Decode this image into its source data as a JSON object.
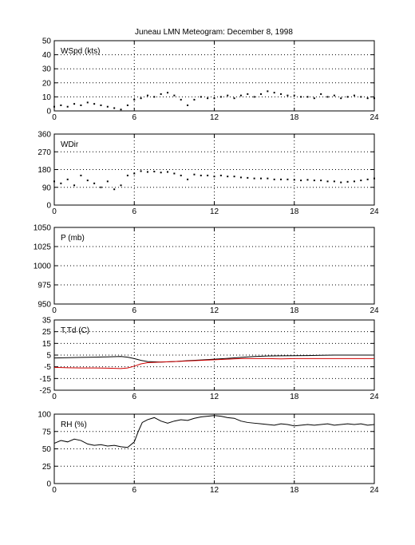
{
  "figure": {
    "title": "Juneau LMN Meteogram:  December  8, 1998"
  },
  "chart_data": [
    {
      "type": "scatter",
      "panel_label": "WSpd (kts)",
      "xlim": [
        0,
        24
      ],
      "ylim": [
        0,
        50
      ],
      "xticks": [
        0,
        6,
        12,
        18,
        24
      ],
      "yticks": [
        0,
        10,
        20,
        30,
        40,
        50
      ],
      "grid": true,
      "series": [
        {
          "color": "#000000",
          "marker": "dot",
          "points": [
            [
              0.0,
              3
            ],
            [
              0.5,
              4
            ],
            [
              1.0,
              3
            ],
            [
              1.5,
              5
            ],
            [
              2.0,
              4
            ],
            [
              2.5,
              6
            ],
            [
              3.0,
              5
            ],
            [
              3.5,
              4
            ],
            [
              4.0,
              3
            ],
            [
              4.5,
              2
            ],
            [
              5.0,
              1
            ],
            [
              5.5,
              4
            ],
            [
              6.0,
              8
            ],
            [
              6.5,
              9
            ],
            [
              7.0,
              11
            ],
            [
              7.5,
              10
            ],
            [
              8.0,
              12
            ],
            [
              8.5,
              13
            ],
            [
              9.0,
              11
            ],
            [
              9.5,
              8
            ],
            [
              10.0,
              4
            ],
            [
              10.5,
              8
            ],
            [
              11.0,
              10
            ],
            [
              11.5,
              9
            ],
            [
              12.0,
              9
            ],
            [
              12.5,
              10
            ],
            [
              13.0,
              11
            ],
            [
              13.5,
              9
            ],
            [
              14.0,
              11
            ],
            [
              14.5,
              12
            ],
            [
              15.0,
              10
            ],
            [
              15.5,
              12
            ],
            [
              16.0,
              14
            ],
            [
              16.5,
              13
            ],
            [
              17.0,
              12
            ],
            [
              17.5,
              11
            ],
            [
              18.0,
              11
            ],
            [
              18.5,
              10
            ],
            [
              19.0,
              10
            ],
            [
              19.5,
              9
            ],
            [
              20.0,
              12
            ],
            [
              20.5,
              10
            ],
            [
              21.0,
              11
            ],
            [
              21.5,
              9
            ],
            [
              22.0,
              10
            ],
            [
              22.5,
              11
            ],
            [
              23.0,
              10
            ],
            [
              23.5,
              9
            ],
            [
              24.0,
              9
            ]
          ]
        }
      ]
    },
    {
      "type": "scatter",
      "panel_label": "WDir",
      "xlim": [
        0,
        24
      ],
      "ylim": [
        0,
        360
      ],
      "xticks": [
        0,
        6,
        12,
        18,
        24
      ],
      "yticks": [
        0,
        90,
        180,
        270,
        360
      ],
      "grid": true,
      "series": [
        {
          "color": "#000000",
          "marker": "dot",
          "points": [
            [
              0.0,
              120
            ],
            [
              0.5,
              110
            ],
            [
              1.0,
              130
            ],
            [
              1.5,
              100
            ],
            [
              2.0,
              150
            ],
            [
              2.5,
              125
            ],
            [
              3.0,
              110
            ],
            [
              3.5,
              90
            ],
            [
              4.0,
              120
            ],
            [
              4.5,
              80
            ],
            [
              5.0,
              100
            ],
            [
              5.5,
              150
            ],
            [
              6.0,
              160
            ],
            [
              6.5,
              172
            ],
            [
              7.0,
              168
            ],
            [
              7.5,
              170
            ],
            [
              8.0,
              165
            ],
            [
              8.5,
              168
            ],
            [
              9.0,
              160
            ],
            [
              9.5,
              150
            ],
            [
              10.0,
              130
            ],
            [
              10.5,
              155
            ],
            [
              11.0,
              150
            ],
            [
              11.5,
              150
            ],
            [
              12.0,
              145
            ],
            [
              12.5,
              150
            ],
            [
              13.0,
              145
            ],
            [
              13.5,
              145
            ],
            [
              14.0,
              140
            ],
            [
              14.5,
              138
            ],
            [
              15.0,
              135
            ],
            [
              15.5,
              135
            ],
            [
              16.0,
              135
            ],
            [
              16.5,
              130
            ],
            [
              17.0,
              130
            ],
            [
              17.5,
              130
            ],
            [
              18.0,
              128
            ],
            [
              18.5,
              125
            ],
            [
              19.0,
              128
            ],
            [
              19.5,
              125
            ],
            [
              20.0,
              125
            ],
            [
              20.5,
              120
            ],
            [
              21.0,
              120
            ],
            [
              21.5,
              115
            ],
            [
              22.0,
              118
            ],
            [
              22.5,
              120
            ],
            [
              23.0,
              125
            ],
            [
              23.5,
              130
            ],
            [
              24.0,
              135
            ]
          ]
        }
      ]
    },
    {
      "type": "line",
      "panel_label": "P (mb)",
      "xlim": [
        0,
        24
      ],
      "ylim": [
        950,
        1050
      ],
      "xticks": [
        0,
        6,
        12,
        18,
        24
      ],
      "yticks": [
        950,
        975,
        1000,
        1025,
        1050
      ],
      "grid": true,
      "series": []
    },
    {
      "type": "line",
      "panel_label": "T,Td (C)",
      "xlim": [
        0,
        24
      ],
      "ylim": [
        -25,
        35
      ],
      "xticks": [
        0,
        6,
        12,
        18,
        24
      ],
      "yticks": [
        -25,
        -15,
        -5,
        5,
        15,
        25,
        35
      ],
      "grid": true,
      "series": [
        {
          "color": "#000000",
          "points": [
            [
              0.0,
              2.5
            ],
            [
              1.0,
              2.8
            ],
            [
              2.0,
              3.0
            ],
            [
              3.0,
              3.2
            ],
            [
              4.0,
              3.5
            ],
            [
              5.0,
              3.8
            ],
            [
              5.5,
              3.2
            ],
            [
              6.0,
              2.0
            ],
            [
              6.5,
              0.5
            ],
            [
              7.0,
              -0.5
            ],
            [
              8.0,
              -1.0
            ],
            [
              9.0,
              -0.5
            ],
            [
              10.0,
              0.2
            ],
            [
              11.0,
              0.8
            ],
            [
              12.0,
              1.5
            ],
            [
              13.0,
              2.2
            ],
            [
              14.0,
              3.0
            ],
            [
              15.0,
              3.8
            ],
            [
              16.0,
              4.2
            ],
            [
              17.0,
              4.4
            ],
            [
              18.0,
              4.5
            ],
            [
              19.0,
              4.6
            ],
            [
              20.0,
              4.8
            ],
            [
              21.0,
              5.0
            ],
            [
              22.0,
              5.0
            ],
            [
              23.0,
              5.0
            ],
            [
              24.0,
              5.0
            ]
          ]
        },
        {
          "color": "#d00000",
          "points": [
            [
              0.0,
              -5.5
            ],
            [
              1.0,
              -5.8
            ],
            [
              2.0,
              -6.0
            ],
            [
              3.0,
              -6.0
            ],
            [
              4.0,
              -6.2
            ],
            [
              5.0,
              -6.5
            ],
            [
              5.5,
              -6.0
            ],
            [
              6.0,
              -4.5
            ],
            [
              6.5,
              -2.5
            ],
            [
              7.0,
              -1.5
            ],
            [
              8.0,
              -1.0
            ],
            [
              9.0,
              -0.5
            ],
            [
              10.0,
              0.0
            ],
            [
              11.0,
              0.5
            ],
            [
              12.0,
              1.0
            ],
            [
              13.0,
              1.5
            ],
            [
              14.0,
              2.0
            ],
            [
              15.0,
              2.0
            ],
            [
              16.0,
              2.0
            ],
            [
              17.0,
              1.8
            ],
            [
              18.0,
              2.0
            ],
            [
              19.0,
              2.0
            ],
            [
              20.0,
              2.0
            ],
            [
              21.0,
              2.0
            ],
            [
              22.0,
              2.0
            ],
            [
              23.0,
              2.0
            ],
            [
              24.0,
              2.0
            ]
          ]
        }
      ]
    },
    {
      "type": "line",
      "panel_label": "RH (%)",
      "xlim": [
        0,
        24
      ],
      "ylim": [
        0,
        100
      ],
      "xticks": [
        0,
        6,
        12,
        18,
        24
      ],
      "yticks": [
        0,
        25,
        50,
        75,
        100
      ],
      "grid": true,
      "series": [
        {
          "color": "#000000",
          "points": [
            [
              0.0,
              58
            ],
            [
              0.5,
              62
            ],
            [
              1.0,
              60
            ],
            [
              1.5,
              64
            ],
            [
              2.0,
              62
            ],
            [
              2.5,
              57
            ],
            [
              3.0,
              55
            ],
            [
              3.5,
              56
            ],
            [
              4.0,
              54
            ],
            [
              4.5,
              55
            ],
            [
              5.0,
              53
            ],
            [
              5.5,
              52
            ],
            [
              6.0,
              60
            ],
            [
              6.3,
              75
            ],
            [
              6.6,
              88
            ],
            [
              7.0,
              92
            ],
            [
              7.5,
              95
            ],
            [
              8.0,
              90
            ],
            [
              8.5,
              87
            ],
            [
              9.0,
              90
            ],
            [
              9.5,
              92
            ],
            [
              10.0,
              91
            ],
            [
              10.5,
              94
            ],
            [
              11.0,
              96
            ],
            [
              11.5,
              97
            ],
            [
              12.0,
              98
            ],
            [
              12.5,
              97
            ],
            [
              13.0,
              95
            ],
            [
              13.5,
              94
            ],
            [
              14.0,
              90
            ],
            [
              14.5,
              88
            ],
            [
              15.0,
              87
            ],
            [
              15.5,
              86
            ],
            [
              16.0,
              85
            ],
            [
              16.5,
              84
            ],
            [
              17.0,
              86
            ],
            [
              17.5,
              85
            ],
            [
              18.0,
              83
            ],
            [
              18.5,
              84
            ],
            [
              19.0,
              85
            ],
            [
              19.5,
              84
            ],
            [
              20.0,
              85
            ],
            [
              20.5,
              86
            ],
            [
              21.0,
              84
            ],
            [
              21.5,
              85
            ],
            [
              22.0,
              86
            ],
            [
              22.5,
              85
            ],
            [
              23.0,
              86
            ],
            [
              23.5,
              84
            ],
            [
              24.0,
              85
            ]
          ]
        }
      ]
    }
  ]
}
